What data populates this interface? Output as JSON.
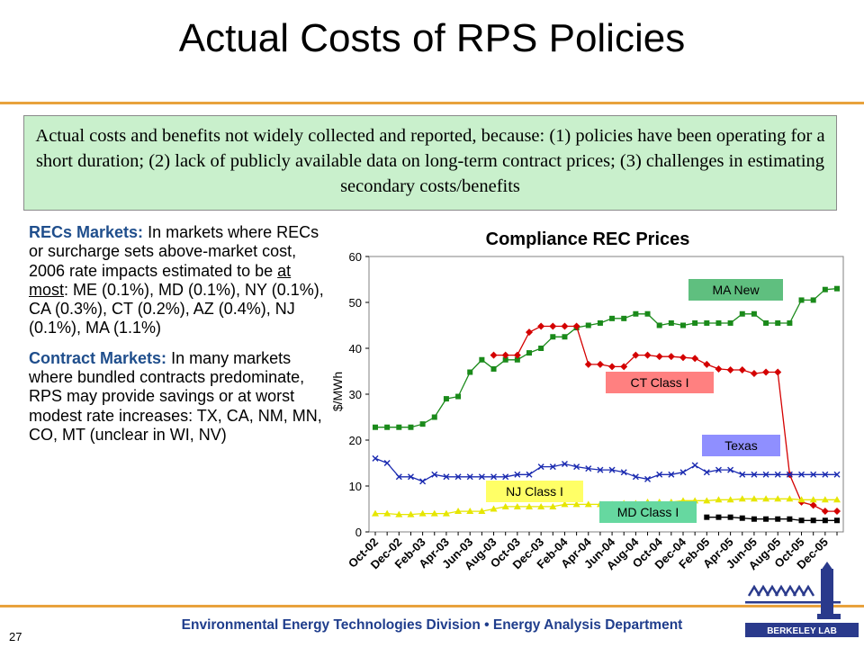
{
  "slide": {
    "title": "Actual Costs of RPS Policies",
    "callout": "Actual costs and benefits not widely collected and reported, because: (1) policies have been operating for a short duration; (2) lack of publicly available data on long-term contract prices; (3) challenges in estimating secondary costs/benefits",
    "bullet1_head": "RECs Markets:",
    "bullet1_a": "In markets where RECs or surcharge sets above-market cost, 2006 rate impacts estimated to be",
    "bullet1_at": "at",
    "bullet1_most": "most",
    "bullet1_b": ": ME (0.1%), MD (0.1%), NY (0.1%), CA (0.3%), CT (0.2%), AZ (0.4%), NJ (0.1%), MA (1.1%)",
    "bullet2_head": "Contract Markets:",
    "bullet2_body": "In many markets where bundled contracts predominate, RPS may provide savings or at worst modest rate increases: TX, CA, NM, MN, CO, MT (unclear in WI, NV)",
    "footer": "Environmental Energy Technologies Division • Energy Analysis Department",
    "page_number": "27",
    "logo_text": "BERKELEY LAB"
  },
  "colors": {
    "accent_rule": "#e8a23c",
    "callout_bg": "#c9f0cc",
    "heading_blue": "#1f4e8c",
    "footer_blue": "#1f3d8c"
  },
  "chart_data": {
    "type": "line",
    "title": "Compliance REC Prices",
    "ylabel": "$/MWh",
    "xlabel": "",
    "ylim": [
      0,
      60
    ],
    "yticks": [
      0,
      10,
      20,
      30,
      40,
      50,
      60
    ],
    "x_tick_labels": [
      "Oct-02",
      "Dec-02",
      "Feb-03",
      "Apr-03",
      "Jun-03",
      "Aug-03",
      "Oct-03",
      "Dec-03",
      "Feb-04",
      "Apr-04",
      "Jun-04",
      "Aug-04",
      "Oct-04",
      "Dec-04",
      "Feb-05",
      "Apr-05",
      "Jun-05",
      "Aug-05",
      "Oct-05",
      "Dec-05"
    ],
    "months": [
      "Oct-02",
      "Nov-02",
      "Dec-02",
      "Jan-03",
      "Feb-03",
      "Mar-03",
      "Apr-03",
      "May-03",
      "Jun-03",
      "Jul-03",
      "Aug-03",
      "Sep-03",
      "Oct-03",
      "Nov-03",
      "Dec-03",
      "Jan-04",
      "Feb-04",
      "Mar-04",
      "Apr-04",
      "May-04",
      "Jun-04",
      "Jul-04",
      "Aug-04",
      "Sep-04",
      "Oct-04",
      "Nov-04",
      "Dec-04",
      "Jan-05",
      "Feb-05",
      "Mar-05",
      "Apr-05",
      "May-05",
      "Jun-05",
      "Jul-05",
      "Aug-05",
      "Sep-05",
      "Oct-05",
      "Nov-05",
      "Dec-05",
      "Jan-06"
    ],
    "grid": false,
    "legend": "inline labels",
    "series": [
      {
        "name": "MA New",
        "color": "#1a8a1a",
        "label_bg": "#5fbf7f",
        "marker": "square",
        "values": [
          22.8,
          22.8,
          22.8,
          22.8,
          23.5,
          25,
          29,
          29.5,
          34.8,
          37.5,
          35.5,
          37.5,
          37.5,
          39,
          40,
          42.5,
          42.5,
          44.5,
          45,
          45.5,
          46.5,
          46.5,
          47.5,
          47.5,
          45,
          45.5,
          45,
          45.5,
          45.5,
          45.5,
          45.5,
          47.5,
          47.5,
          45.5,
          45.5,
          45.5,
          50.5,
          50.5,
          52.8,
          53
        ]
      },
      {
        "name": "CT Class I",
        "color": "#d40000",
        "label_bg": "#ff8080",
        "marker": "diamond",
        "values": [
          null,
          null,
          null,
          null,
          null,
          null,
          null,
          null,
          null,
          null,
          38.5,
          38.5,
          38.5,
          43.5,
          44.8,
          44.8,
          44.8,
          44.8,
          36.5,
          36.5,
          36,
          36,
          38.5,
          38.5,
          38.2,
          38.2,
          38,
          37.8,
          36.5,
          35.5,
          35.3,
          35.3,
          34.5,
          34.8,
          34.8,
          12.5,
          6.5,
          5.8,
          4.5,
          4.5
        ]
      },
      {
        "name": "Texas",
        "color": "#1a2ab0",
        "label_bg": "#8f8fff",
        "marker": "x",
        "values": [
          16,
          15,
          12,
          12,
          11,
          12.5,
          12,
          12,
          12,
          12,
          12,
          12,
          12.5,
          12.5,
          14.2,
          14.2,
          14.8,
          14.2,
          13.8,
          13.5,
          13.5,
          13,
          12,
          11.5,
          12.5,
          12.5,
          13,
          14.5,
          13,
          13.5,
          13.5,
          12.5,
          12.5,
          12.5,
          12.5,
          12.5,
          12.5,
          12.5,
          12.5,
          12.5
        ]
      },
      {
        "name": "NJ Class I",
        "color": "#e6e600",
        "label_bg": "#ffff66",
        "marker": "triangle",
        "values": [
          4,
          4,
          3.8,
          3.8,
          4,
          4,
          4,
          4.5,
          4.5,
          4.5,
          5,
          5.5,
          5.5,
          5.5,
          5.5,
          5.5,
          6,
          6,
          6,
          6,
          6,
          6.2,
          6.2,
          6.5,
          6.5,
          6.5,
          6.8,
          6.8,
          6.8,
          7,
          7,
          7.2,
          7.2,
          7.2,
          7.2,
          7.2,
          7,
          7,
          7,
          7
        ]
      },
      {
        "name": "MD Class I",
        "color": "#000000",
        "label_bg": "#66d8a0",
        "marker": "square",
        "values": [
          null,
          null,
          null,
          null,
          null,
          null,
          null,
          null,
          null,
          null,
          null,
          null,
          null,
          null,
          null,
          null,
          null,
          null,
          null,
          null,
          null,
          null,
          null,
          null,
          null,
          null,
          null,
          null,
          3.2,
          3.2,
          3.2,
          3,
          2.8,
          2.8,
          2.8,
          2.8,
          2.5,
          2.5,
          2.5,
          2.5
        ]
      }
    ]
  }
}
